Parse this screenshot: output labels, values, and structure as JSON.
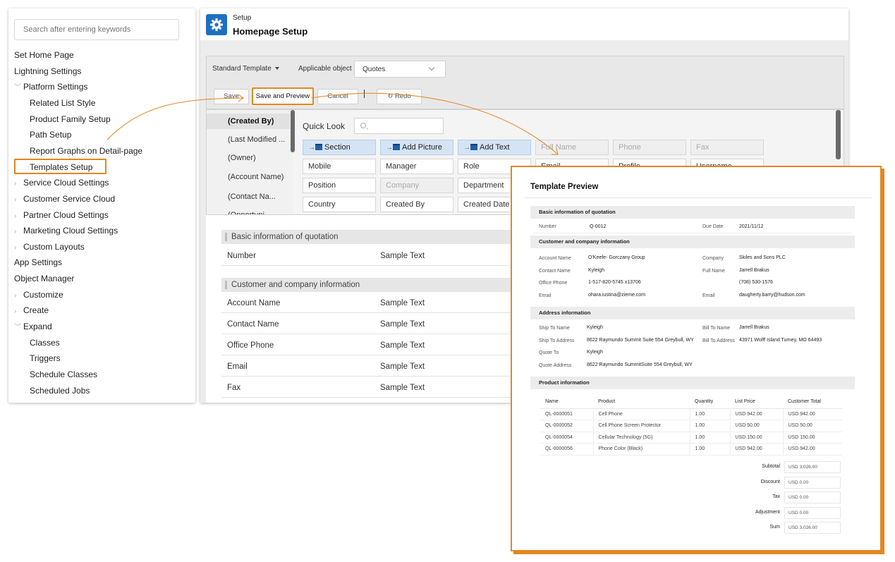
{
  "sidebar": {
    "search_placeholder": "Search after entering keywords",
    "items": [
      {
        "label": "Set Home Page",
        "level": 0,
        "chevron": ""
      },
      {
        "label": "Lightning Settings",
        "level": 0,
        "chevron": ""
      },
      {
        "label": "Platform Settings",
        "level": 1,
        "chevron": "﹀"
      },
      {
        "label": "Related List Style",
        "level": 2,
        "chevron": ""
      },
      {
        "label": "Product Family Setup",
        "level": 2,
        "chevron": ""
      },
      {
        "label": "Path Setup",
        "level": 2,
        "chevron": ""
      },
      {
        "label": "Report Graphs on Detail-page",
        "level": 2,
        "chevron": ""
      },
      {
        "label": "Templates Setup",
        "level": 2,
        "chevron": "",
        "active": true
      },
      {
        "label": "Service Cloud Settings",
        "level": 1,
        "chevron": "›"
      },
      {
        "label": "Customer Service Cloud",
        "level": 1,
        "chevron": "›"
      },
      {
        "label": "Partner Cloud Settings",
        "level": 1,
        "chevron": "›"
      },
      {
        "label": "Marketing Cloud Settings",
        "level": 1,
        "chevron": "›"
      },
      {
        "label": "Custom Layouts",
        "level": 1,
        "chevron": "›"
      },
      {
        "label": "App Settings",
        "level": 0,
        "chevron": ""
      },
      {
        "label": "Object Manager",
        "level": 0,
        "chevron": ""
      },
      {
        "label": "Customize",
        "level": 1,
        "chevron": "›"
      },
      {
        "label": "Create",
        "level": 1,
        "chevron": "›"
      },
      {
        "label": "Expand",
        "level": 1,
        "chevron": "﹀"
      },
      {
        "label": "Classes",
        "level": 2,
        "chevron": ""
      },
      {
        "label": "Triggers",
        "level": 2,
        "chevron": ""
      },
      {
        "label": "Schedule Classes",
        "level": 2,
        "chevron": ""
      },
      {
        "label": "Scheduled Jobs",
        "level": 2,
        "chevron": ""
      }
    ]
  },
  "header": {
    "subtitle": "Setup",
    "title": "Homepage Setup",
    "icon": "gear-icon",
    "icon_color": "#1d6fc0"
  },
  "toolbar": {
    "template_select": "Standard Template",
    "applicable_label": "Applicable object",
    "applicable_value": "Quotes",
    "save_label": "Save",
    "save_preview_label": "Save and Preview",
    "cancel_label": "Cancel",
    "redo_label": "Redo",
    "accent_color": "#e3871f"
  },
  "field_list": [
    "(Created By)",
    "(Last Modified ...",
    "(Owner)",
    "(Account Name)",
    "(Contact Na...",
    "(Opportuni"
  ],
  "quick_look": {
    "label": "Quick Look",
    "chips_row1": [
      "Section",
      "Add Picture",
      "Add Text",
      "Full Name",
      "Phone",
      "Fax"
    ],
    "chips_row2": [
      "Mobile",
      "Manager",
      "Role",
      "Email",
      "Profile",
      "Username"
    ],
    "chips_row3": [
      "Position",
      "Company",
      "Department"
    ],
    "chips_row4": [
      "Country",
      "Created By",
      "Created Date"
    ]
  },
  "canvas": {
    "section1": "Basic information of quotation",
    "section1_rows": [
      {
        "k": "Number",
        "v": "Sample Text"
      }
    ],
    "section2": "Customer and company information",
    "section2_rows": [
      {
        "k": "Account Name",
        "v": "Sample Text"
      },
      {
        "k": "Contact Name",
        "v": "Sample Text"
      },
      {
        "k": "Office Phone",
        "v": "Sample Text"
      },
      {
        "k": "Email",
        "v": "Sample Text"
      },
      {
        "k": "Fax",
        "v": "Sample Text"
      }
    ]
  },
  "preview": {
    "title": "Template Preview",
    "basic": {
      "heading": "Basic information of quotation",
      "number_label": "Number",
      "number_value": "Q-0012",
      "due_label": "Due Date",
      "due_value": "2021/11/12"
    },
    "customer": {
      "heading": "Customer and company information",
      "left": [
        {
          "k": "Account Name",
          "v": "O'Keefe- Gorczany Group"
        },
        {
          "k": "Contact Name",
          "v": "Kyleigh"
        },
        {
          "k": "Office Phone",
          "v": "1-517-820-5745 x13706"
        },
        {
          "k": "Email",
          "v": "ohara.iustina@zieme.com"
        }
      ],
      "right": [
        {
          "k": "Company",
          "v": "Skiles and Sons PLC"
        },
        {
          "k": "Full Name",
          "v": "Jarrell Brakus"
        },
        {
          "k": "",
          "v": "(708) 530-1576"
        },
        {
          "k": "Email",
          "v": "daugherty.barry@hudson.com"
        }
      ]
    },
    "address": {
      "heading": "Address information",
      "left": [
        {
          "k": "Ship To Name",
          "v": "Kyleigh"
        },
        {
          "k": "Ship To Address",
          "v": "8622 Raymundo Summit Suite 554 Greybull, WY"
        },
        {
          "k": "Quote To",
          "v": "Kyleigh"
        },
        {
          "k": "Quote Address",
          "v": "8622 Raymundo SummitSuite 554 Greybull, WY"
        }
      ],
      "right": [
        {
          "k": "Bill To Name",
          "v": "Jarrell Brakus"
        },
        {
          "k": "Bill To Address",
          "v": "43971 Wolff Island Turney, MO 64493"
        }
      ]
    },
    "product": {
      "heading": "Product information",
      "columns": [
        "Name",
        "Product",
        "Quantity",
        "List Price",
        "Customer Total"
      ],
      "rows": [
        [
          "QL-0000051",
          "Cell Phone",
          "1.00",
          "USD 942.00",
          "USD 942.00"
        ],
        [
          "QL-0000052",
          "Cell Phone Screen Protector",
          "1.00",
          "USD 50.00",
          "USD 50.00"
        ],
        [
          "QL-0000054",
          "Cellular Technology (5G)",
          "1.00",
          "USD 150.00",
          "USD 150.00"
        ],
        [
          "QL-0000056",
          "Phone Color (Black)",
          "1.00",
          "USD 942.00",
          "USD 942.00"
        ]
      ]
    },
    "totals": [
      {
        "k": "Subtotal",
        "v": "USD 3,026.00"
      },
      {
        "k": "Discount",
        "v": "USD 0.00"
      },
      {
        "k": "Tax",
        "v": "USD 0.00"
      },
      {
        "k": "Adjustment",
        "v": "USD 0.00"
      },
      {
        "k": "Sum",
        "v": "USD 3,026.00"
      }
    ]
  }
}
